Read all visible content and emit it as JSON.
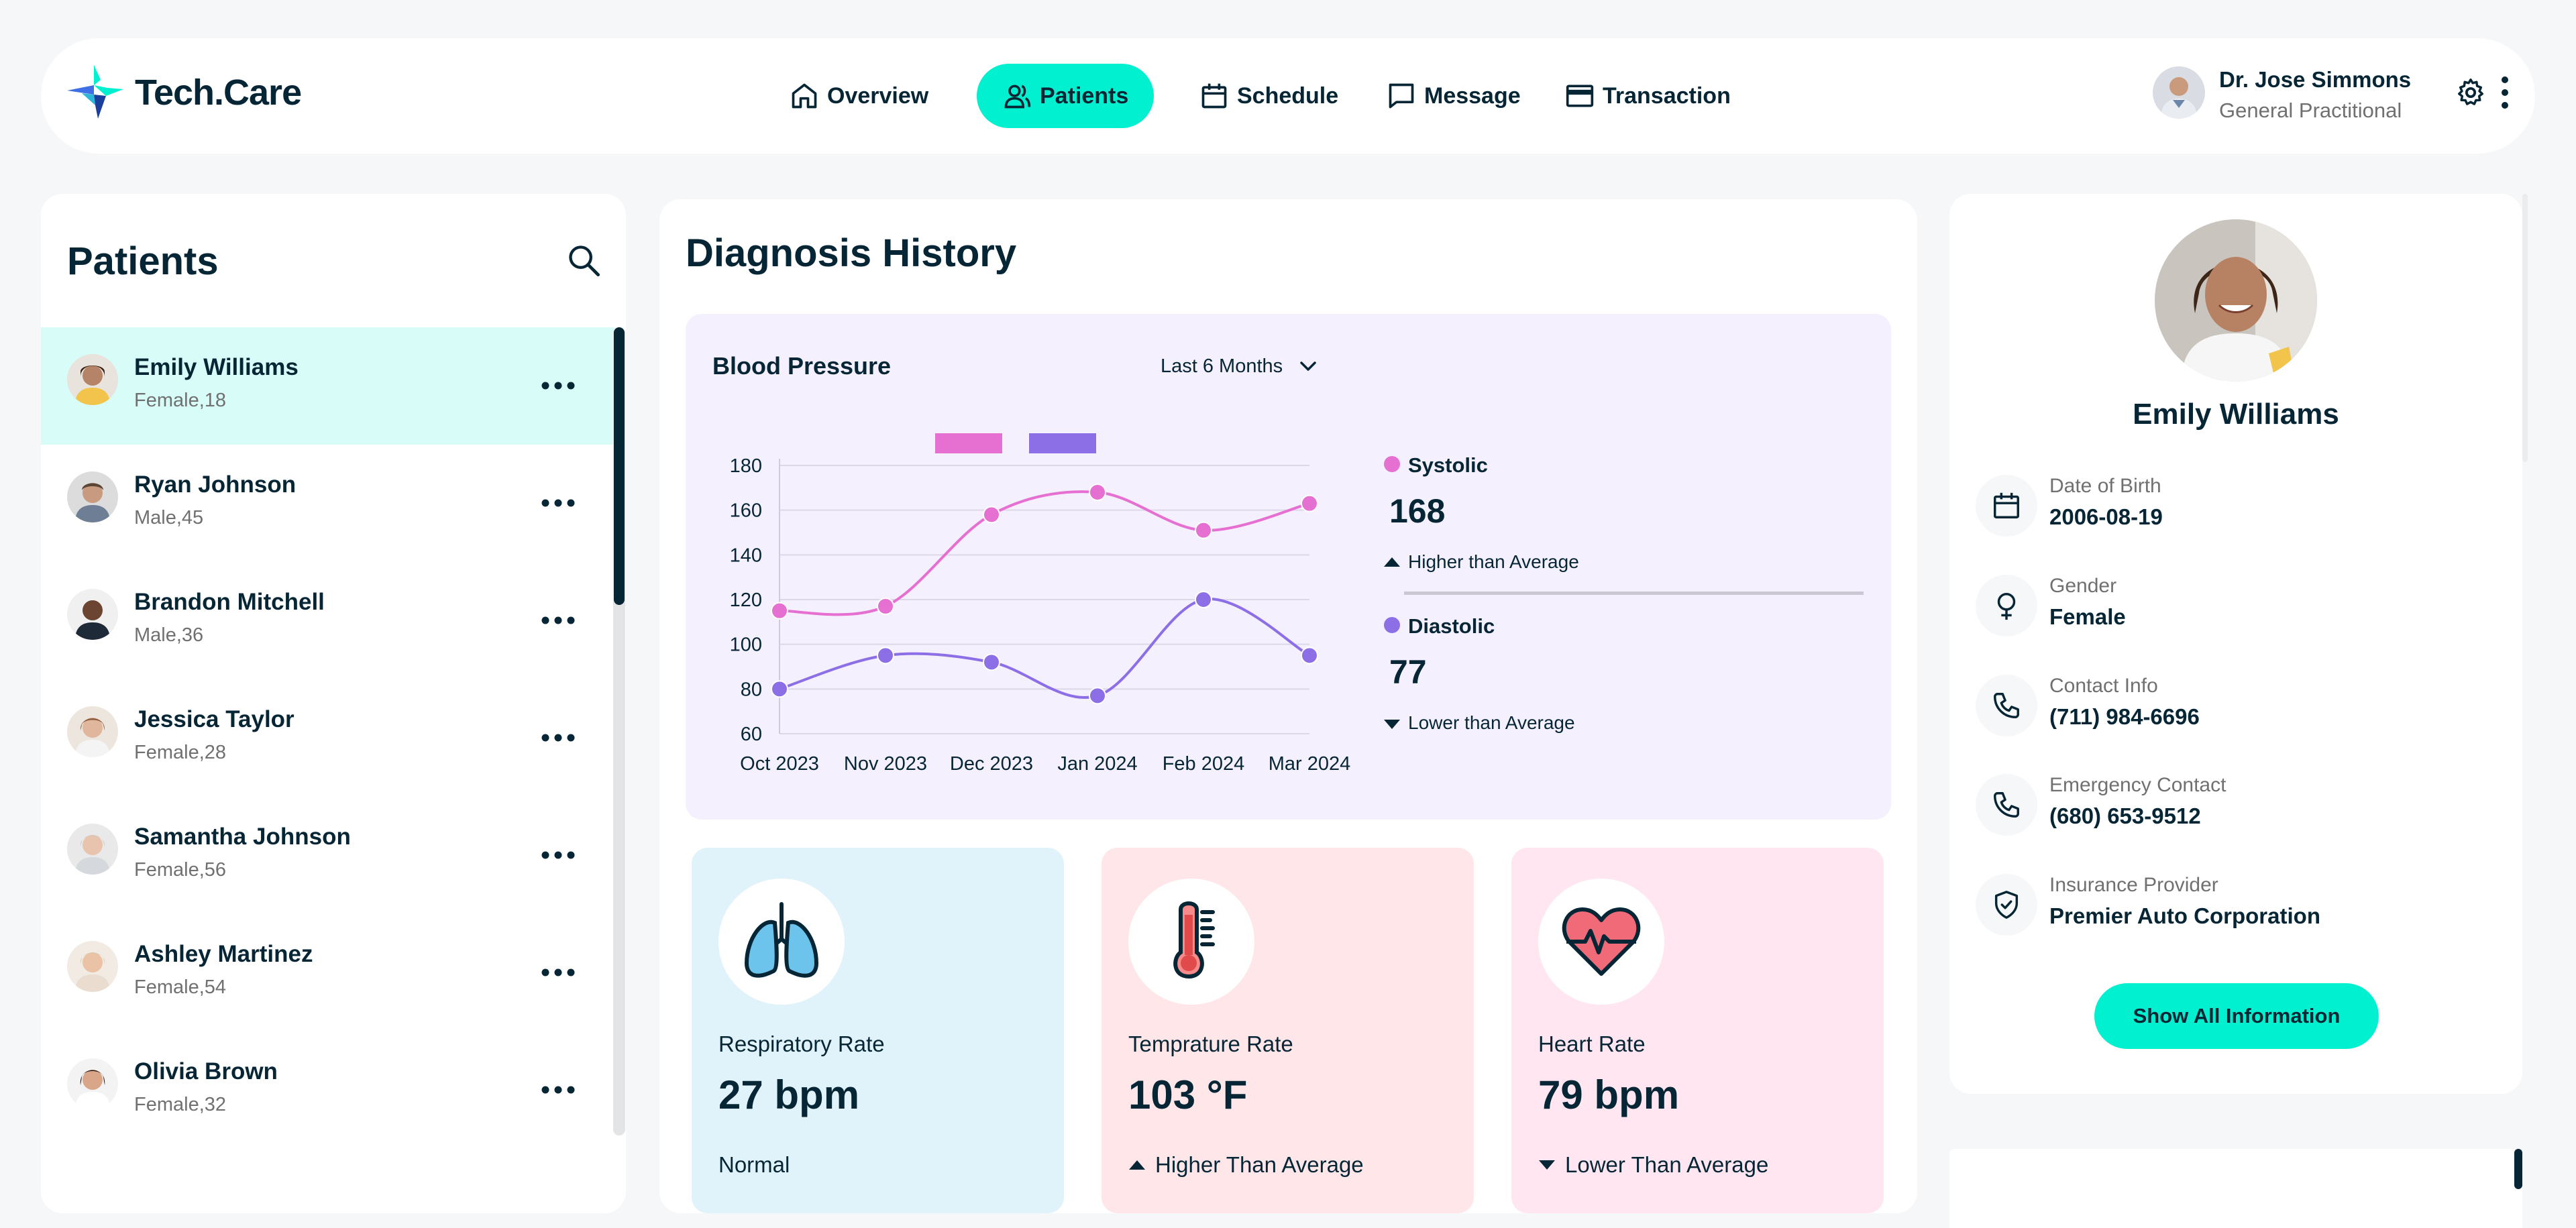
{
  "header": {
    "brand": "Tech.Care",
    "nav": [
      {
        "label": "Overview",
        "icon": "home-icon"
      },
      {
        "label": "Patients",
        "icon": "users-icon"
      },
      {
        "label": "Schedule",
        "icon": "calendar-icon"
      },
      {
        "label": "Message",
        "icon": "chat-icon"
      },
      {
        "label": "Transaction",
        "icon": "credit-card-icon"
      }
    ],
    "doctor": {
      "name": "Dr. Jose Simmons",
      "role": "General Practitional"
    }
  },
  "patients": {
    "title": "Patients",
    "items": [
      {
        "name": "Emily Williams",
        "info": "Female,18"
      },
      {
        "name": "Ryan Johnson",
        "info": "Male,45"
      },
      {
        "name": "Brandon Mitchell",
        "info": "Male,36"
      },
      {
        "name": "Jessica Taylor",
        "info": "Female,28"
      },
      {
        "name": "Samantha Johnson",
        "info": "Female,56"
      },
      {
        "name": "Ashley Martinez",
        "info": "Female,54"
      },
      {
        "name": "Olivia Brown",
        "info": "Female,32"
      }
    ]
  },
  "diagnosis": {
    "title": "Diagnosis History",
    "bp": {
      "title": "Blood Pressure",
      "range": "Last 6 Months",
      "systolic": {
        "label": "Systolic",
        "value": "168",
        "note": "Higher than Average"
      },
      "diastolic": {
        "label": "Diastolic",
        "value": "77",
        "note": "Lower than Average"
      }
    },
    "vitals": [
      {
        "label": "Respiratory Rate",
        "value": "27 bpm",
        "note": "Normal"
      },
      {
        "label": "Temprature Rate",
        "value": "103 °F",
        "note": "Higher Than Average"
      },
      {
        "label": "Heart Rate",
        "value": "79 bpm",
        "note": "Lower Than Average"
      }
    ]
  },
  "chart_data": {
    "type": "line",
    "title": "Blood Pressure",
    "categories": [
      "Oct 2023",
      "Nov 2023",
      "Dec 2023",
      "Jan 2024",
      "Feb 2024",
      "Mar 2024"
    ],
    "series": [
      {
        "name": "Systolic",
        "color": "#e66fd2",
        "values": [
          115,
          117,
          158,
          168,
          151,
          163
        ]
      },
      {
        "name": "Diastolic",
        "color": "#8c6fe6",
        "values": [
          80,
          95,
          92,
          77,
          120,
          95
        ]
      }
    ],
    "yticks": [
      60,
      80,
      100,
      120,
      140,
      160,
      180
    ],
    "ylim": [
      60,
      180
    ],
    "legend": "top"
  },
  "profile": {
    "name": "Emily Williams",
    "dob_label": "Date of Birth",
    "dob": "2006-08-19",
    "gender_label": "Gender",
    "gender": "Female",
    "contact_label": "Contact Info",
    "contact": "(711) 984-6696",
    "emergency_label": "Emergency Contact",
    "emergency": "(680) 653-9512",
    "insurance_label": "Insurance Provider",
    "insurance": "Premier Auto Corporation",
    "button": "Show All Information"
  },
  "colors": {
    "accent": "#01f0d0",
    "navy": "#072635",
    "systolic": "#e66fd2",
    "diastolic": "#8c6fe6"
  }
}
